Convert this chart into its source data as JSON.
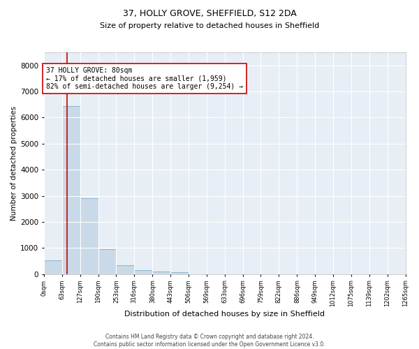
{
  "title1": "37, HOLLY GROVE, SHEFFIELD, S12 2DA",
  "title2": "Size of property relative to detached houses in Sheffield",
  "xlabel": "Distribution of detached houses by size in Sheffield",
  "ylabel": "Number of detached properties",
  "bar_color": "#c9d9e8",
  "bar_edge_color": "#8ab4cf",
  "background_color": "#e8eef5",
  "grid_color": "#ffffff",
  "annotation_box_color": "#cc0000",
  "vline_color": "#cc0000",
  "bin_edges": [
    0,
    63,
    127,
    190,
    253,
    316,
    380,
    443,
    506,
    569,
    633,
    696,
    759,
    822,
    886,
    949,
    1012,
    1075,
    1139,
    1202,
    1265
  ],
  "bar_heights": [
    530,
    6430,
    2920,
    960,
    330,
    155,
    105,
    65,
    0,
    0,
    0,
    0,
    0,
    0,
    0,
    0,
    0,
    0,
    0,
    0
  ],
  "property_size": 80,
  "ylim": [
    0,
    8500
  ],
  "yticks": [
    0,
    1000,
    2000,
    3000,
    4000,
    5000,
    6000,
    7000,
    8000
  ],
  "annotation_text": "37 HOLLY GROVE: 80sqm\n← 17% of detached houses are smaller (1,959)\n82% of semi-detached houses are larger (9,254) →",
  "footer1": "Contains HM Land Registry data © Crown copyright and database right 2024.",
  "footer2": "Contains public sector information licensed under the Open Government Licence v3.0.",
  "tick_labels": [
    "0sqm",
    "63sqm",
    "127sqm",
    "190sqm",
    "253sqm",
    "316sqm",
    "380sqm",
    "443sqm",
    "506sqm",
    "569sqm",
    "633sqm",
    "696sqm",
    "759sqm",
    "822sqm",
    "886sqm",
    "949sqm",
    "1012sqm",
    "1075sqm",
    "1139sqm",
    "1202sqm",
    "1265sqm"
  ],
  "title1_fontsize": 9,
  "title2_fontsize": 8,
  "ylabel_fontsize": 7.5,
  "xlabel_fontsize": 8,
  "ytick_fontsize": 7.5,
  "xtick_fontsize": 6,
  "footer_fontsize": 5.5,
  "ann_fontsize": 7
}
